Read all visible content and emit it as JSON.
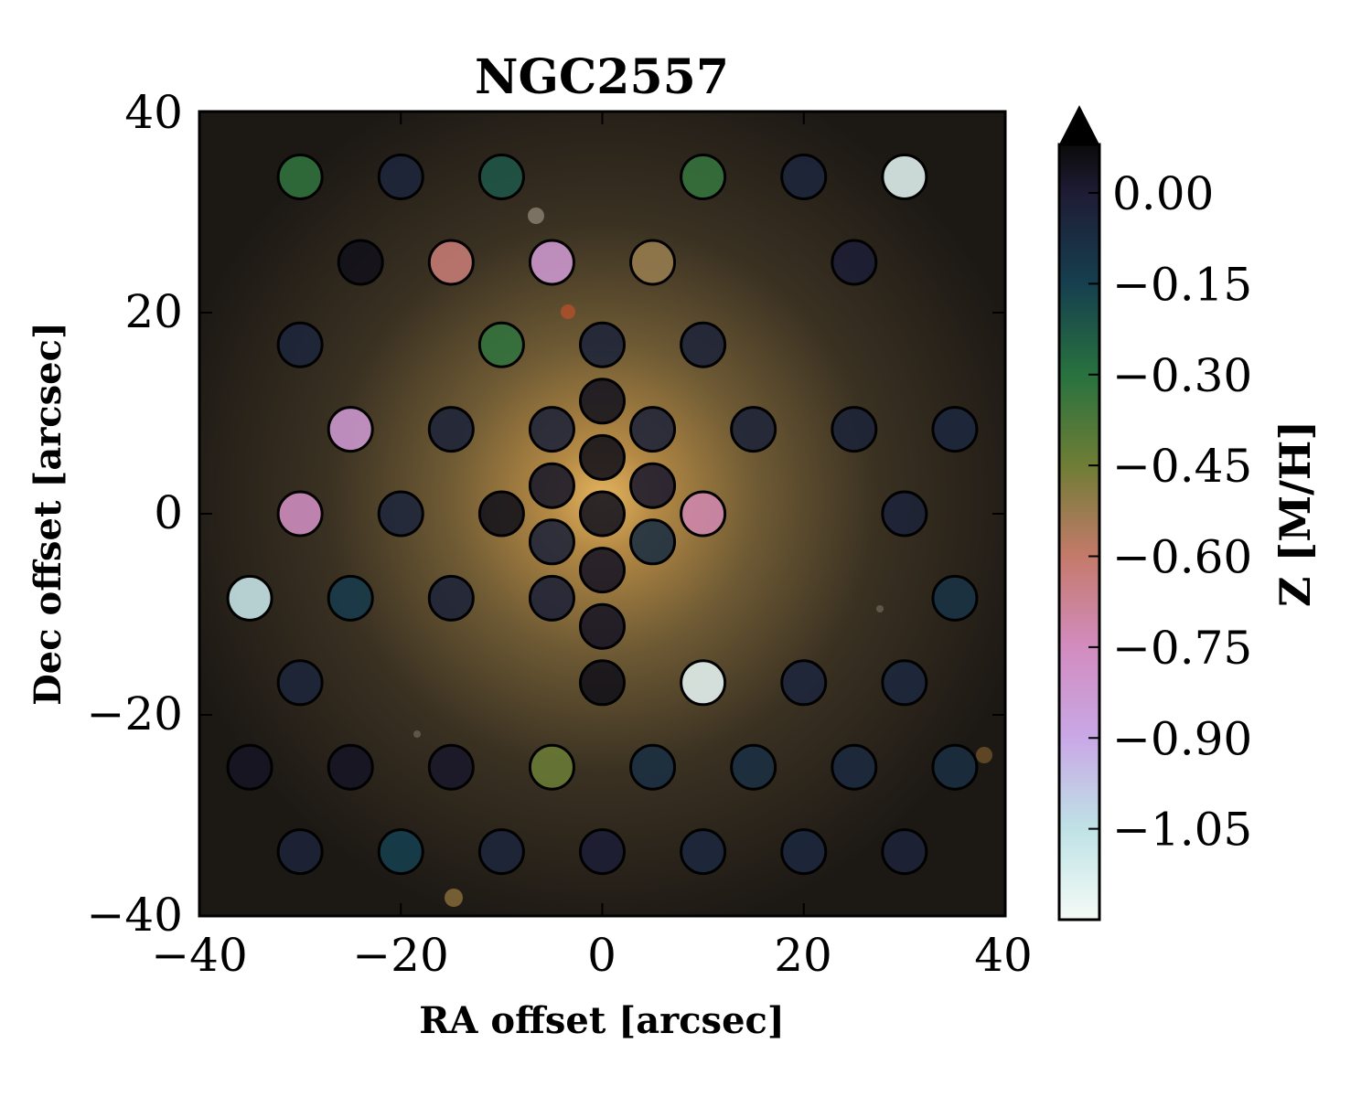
{
  "chart_data": {
    "type": "scatter",
    "title": "NGC2557",
    "xlabel": "RA offset [arcsec]",
    "ylabel": "Dec offset [arcsec]",
    "xlim": [
      -40,
      40
    ],
    "ylim": [
      -40,
      40
    ],
    "x_ticks": [
      "−40",
      "−20",
      "0",
      "20",
      "40"
    ],
    "y_ticks": [
      "−40",
      "−20",
      "0",
      "20",
      "40"
    ],
    "colorbar": {
      "label": "Z [M/H]",
      "range": [
        -1.2,
        0.08
      ],
      "extend": "max",
      "ticks": [
        {
          "value": 0.0,
          "label": "0.00"
        },
        {
          "value": -0.15,
          "label": "−0.15"
        },
        {
          "value": -0.3,
          "label": "−0.30"
        },
        {
          "value": -0.45,
          "label": "−0.45"
        },
        {
          "value": -0.6,
          "label": "−0.60"
        },
        {
          "value": -0.75,
          "label": "−0.75"
        },
        {
          "value": -0.9,
          "label": "−0.90"
        },
        {
          "value": -1.05,
          "label": "−1.05"
        }
      ]
    },
    "grid": false,
    "legend": "none",
    "background": "galaxy image",
    "points": [
      {
        "x": -30,
        "y": 33.5,
        "z": -0.32
      },
      {
        "x": -20,
        "y": 33.5,
        "z": -0.04
      },
      {
        "x": -10,
        "y": 33.5,
        "z": -0.22
      },
      {
        "x": 10,
        "y": 33.5,
        "z": -0.33
      },
      {
        "x": 20,
        "y": 33.5,
        "z": -0.04
      },
      {
        "x": 30,
        "y": 33.5,
        "z": -1.15
      },
      {
        "x": -24,
        "y": 25,
        "z": 0.05
      },
      {
        "x": -15,
        "y": 25,
        "z": -0.62
      },
      {
        "x": -5,
        "y": 25,
        "z": -0.82
      },
      {
        "x": 5,
        "y": 25,
        "z": -0.52
      },
      {
        "x": 25,
        "y": 25,
        "z": -0.01
      },
      {
        "x": -30,
        "y": 16.8,
        "z": -0.04
      },
      {
        "x": -10,
        "y": 16.8,
        "z": -0.32
      },
      {
        "x": 0,
        "y": 16.8,
        "z": -0.03
      },
      {
        "x": 10,
        "y": 16.8,
        "z": -0.03
      },
      {
        "x": 0,
        "y": 11.2,
        "z": 0.04
      },
      {
        "x": -25,
        "y": 8.4,
        "z": -0.82
      },
      {
        "x": -15,
        "y": 8.4,
        "z": -0.03
      },
      {
        "x": -5,
        "y": 8.4,
        "z": -0.03
      },
      {
        "x": 5,
        "y": 8.4,
        "z": -0.03
      },
      {
        "x": 15,
        "y": 8.4,
        "z": -0.03
      },
      {
        "x": 25,
        "y": 8.4,
        "z": -0.03
      },
      {
        "x": 35,
        "y": 8.4,
        "z": -0.05
      },
      {
        "x": 0,
        "y": 5.6,
        "z": 0.05
      },
      {
        "x": -5,
        "y": 2.8,
        "z": 0.02
      },
      {
        "x": 5,
        "y": 2.8,
        "z": 0.01
      },
      {
        "x": -30,
        "y": 0,
        "z": -0.76
      },
      {
        "x": -20,
        "y": 0,
        "z": -0.04
      },
      {
        "x": -10,
        "y": 0,
        "z": 0.05
      },
      {
        "x": 0,
        "y": 0,
        "z": 0.04
      },
      {
        "x": 10,
        "y": 0,
        "z": -0.72
      },
      {
        "x": 30,
        "y": 0,
        "z": -0.03
      },
      {
        "x": -5,
        "y": -2.8,
        "z": -0.03
      },
      {
        "x": 5,
        "y": -2.8,
        "z": -0.08
      },
      {
        "x": 0,
        "y": -5.6,
        "z": 0.03
      },
      {
        "x": -35,
        "y": -8.4,
        "z": -1.08
      },
      {
        "x": -25,
        "y": -8.4,
        "z": -0.13
      },
      {
        "x": -15,
        "y": -8.4,
        "z": -0.03
      },
      {
        "x": -5,
        "y": -8.4,
        "z": -0.02
      },
      {
        "x": 35,
        "y": -8.4,
        "z": -0.1
      },
      {
        "x": 0,
        "y": -11.2,
        "z": 0.03
      },
      {
        "x": -30,
        "y": -16.8,
        "z": -0.04
      },
      {
        "x": 0,
        "y": -16.8,
        "z": 0.05
      },
      {
        "x": 10,
        "y": -16.8,
        "z": -1.16
      },
      {
        "x": 20,
        "y": -16.8,
        "z": -0.04
      },
      {
        "x": 30,
        "y": -16.8,
        "z": -0.05
      },
      {
        "x": -35,
        "y": -25.2,
        "z": 0.03
      },
      {
        "x": -25,
        "y": -25.2,
        "z": 0.03
      },
      {
        "x": -15,
        "y": -25.2,
        "z": 0.02
      },
      {
        "x": -5,
        "y": -25.2,
        "z": -0.44
      },
      {
        "x": 5,
        "y": -25.2,
        "z": -0.08
      },
      {
        "x": 15,
        "y": -25.2,
        "z": -0.08
      },
      {
        "x": 25,
        "y": -25.2,
        "z": -0.06
      },
      {
        "x": 35,
        "y": -25.2,
        "z": -0.08
      },
      {
        "x": -30,
        "y": -33.6,
        "z": -0.03
      },
      {
        "x": -20,
        "y": -33.6,
        "z": -0.15
      },
      {
        "x": -10,
        "y": -33.6,
        "z": -0.04
      },
      {
        "x": 0,
        "y": -33.6,
        "z": -0.01
      },
      {
        "x": 10,
        "y": -33.6,
        "z": -0.05
      },
      {
        "x": 20,
        "y": -33.6,
        "z": -0.05
      },
      {
        "x": 30,
        "y": -33.6,
        "z": -0.03
      }
    ],
    "colormap_stops": [
      {
        "value": 0.08,
        "color": "#0b0a0a"
      },
      {
        "value": 0.0,
        "color": "#1e1c34"
      },
      {
        "value": -0.15,
        "color": "#163f4f"
      },
      {
        "value": -0.3,
        "color": "#28723f"
      },
      {
        "value": -0.45,
        "color": "#6f7d35"
      },
      {
        "value": -0.6,
        "color": "#c47a6a"
      },
      {
        "value": -0.75,
        "color": "#d28cbf"
      },
      {
        "value": -0.9,
        "color": "#c9a8e6"
      },
      {
        "value": -1.05,
        "color": "#bfe2e6"
      },
      {
        "value": -1.2,
        "color": "#f4fbf6"
      }
    ]
  }
}
